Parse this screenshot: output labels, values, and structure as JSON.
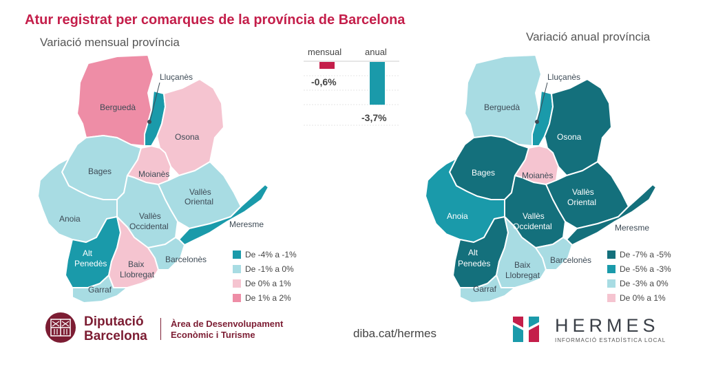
{
  "title": "Atur registrat per comarques de la província de Barcelona",
  "left_map": {
    "subtitle": "Variació mensual província",
    "legend": [
      {
        "label": "De -4% a -1%",
        "color": "#1a9aaa"
      },
      {
        "label": "De -1% a 0%",
        "color": "#a8dce3"
      },
      {
        "label": "De 0% a 1%",
        "color": "#f5c4d0"
      },
      {
        "label": "De 1% a 2%",
        "color": "#ee8da6"
      }
    ]
  },
  "right_map": {
    "subtitle": "Variació anual província",
    "legend": [
      {
        "label": "De -7% a -5%",
        "color": "#14707c"
      },
      {
        "label": "De -5% a -3%",
        "color": "#1a9aaa"
      },
      {
        "label": "De -3% a 0%",
        "color": "#a8dce3"
      },
      {
        "label": "De 0% a 1%",
        "color": "#f5c4d0"
      }
    ]
  },
  "regions": {
    "bergueda": "Berguedà",
    "llucanes": "Lluçanès",
    "osona": "Osona",
    "bages": "Bages",
    "moianes": "Moianès",
    "valles_oriental_1": "Vallès",
    "valles_oriental_2": "Oriental",
    "valles_occidental_1": "Vallès",
    "valles_occidental_2": "Occidental",
    "anoia": "Anoia",
    "maresme": "Meresme",
    "alt_penedes_1": "Alt",
    "alt_penedes_2": "Penedès",
    "baix_llobregat_1": "Baix",
    "baix_llobregat_2": "Llobregat",
    "barcelones": "Barcelonès",
    "garraf": "Garraf"
  },
  "bars": {
    "mensual_label": "mensual",
    "anual_label": "anual",
    "mensual_value": "-0,6%",
    "anual_value": "-3,7%",
    "mensual_num": -0.6,
    "anual_num": -3.7,
    "mensual_color": "#c41e4a",
    "anual_color": "#1a9aaa"
  },
  "footer": {
    "logo_line1": "Diputació",
    "logo_line2": "Barcelona",
    "dept_line1": "Àrea de Desenvolupament",
    "dept_line2": "Econòmic i Turisme",
    "url": "diba.cat/hermes",
    "hermes_name": "HERMES",
    "hermes_sub": "INFORMACIÓ ESTADÍSTICA LOCAL"
  },
  "colors": {
    "title": "#c41e4a",
    "brand_dark": "#7c1d33"
  }
}
